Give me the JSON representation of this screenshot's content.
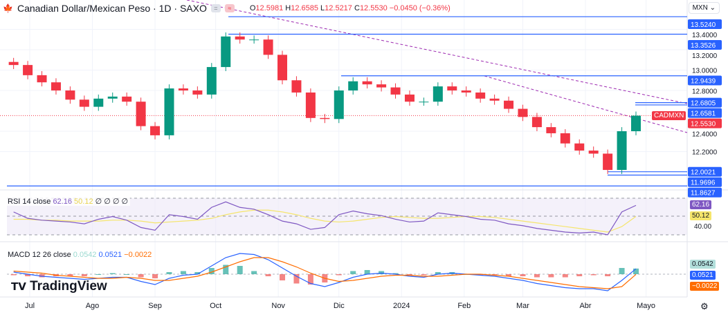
{
  "header": {
    "title": "Canadian Dollar/Mexican Peso · 1D · SAXO",
    "open": "12.5981",
    "high": "12.6585",
    "low": "12.5217",
    "close": "12.5530",
    "change": "−0.0450 (−0.36%)",
    "o": "O",
    "h": "H",
    "l": "L",
    "c": "C"
  },
  "currency": "MXN",
  "symbol_label": "CADMXN",
  "logo": "TradingView",
  "rsi": {
    "label": "RSI 14 close",
    "value": "62.16",
    "ma": "50.12",
    "na": "∅ ∅ ∅ ∅",
    "level40": "40.00"
  },
  "macd": {
    "label": "MACD 12 26 close",
    "hist": "0.0542",
    "macd": "0.0521",
    "signal": "−0.0022"
  },
  "colors": {
    "up": "#089981",
    "down": "#f23645",
    "lines": "#2962ff",
    "trend": "#9c27b0",
    "rsi": "#7e57c2",
    "rsi_ma": "#f5e56b",
    "macd": "#2962ff",
    "signal": "#ff6d00"
  },
  "chart_data": {
    "type": "candlestick",
    "price_ticks": [
      "13.4000",
      "13.2000",
      "13.0000",
      "12.8000",
      "12.4000",
      "12.2000"
    ],
    "x_ticks": [
      {
        "date": "2023-07-01",
        "label": "Jul"
      },
      {
        "date": "2023-08-01",
        "label": "Ago"
      },
      {
        "date": "2023-09-01",
        "label": "Sep"
      },
      {
        "date": "2023-10-01",
        "label": "Oct"
      },
      {
        "date": "2023-11-01",
        "label": "Nov"
      },
      {
        "date": "2023-12-01",
        "label": "Dic"
      },
      {
        "date": "2024-01-01",
        "label": "2024"
      },
      {
        "date": "2024-02-01",
        "label": "Feb"
      },
      {
        "date": "2024-03-01",
        "label": "Mar"
      },
      {
        "date": "2024-04-01",
        "label": "Abr"
      },
      {
        "date": "2024-05-01",
        "label": "Mayo"
      }
    ],
    "horizontal_levels": [
      {
        "value": 13.524,
        "label": "13.5240"
      },
      {
        "value": 13.3526,
        "label": "13.3526"
      },
      {
        "value": 12.9439,
        "label": "12.9439"
      },
      {
        "value": 12.6805,
        "label": "12.6805"
      },
      {
        "value": 12.6581,
        "label": "12.6581"
      },
      {
        "value": 12.0021,
        "label": "12.0021"
      },
      {
        "value": 11.9696,
        "label": "11.9696"
      },
      {
        "value": 11.8627,
        "label": "11.8627"
      }
    ],
    "last_price": {
      "value": 12.553,
      "label": "12.5530"
    },
    "dates": [
      "2023-06-23",
      "2023-06-30",
      "2023-07-07",
      "2023-07-14",
      "2023-07-21",
      "2023-07-28",
      "2023-08-04",
      "2023-08-11",
      "2023-08-18",
      "2023-08-25",
      "2023-09-01",
      "2023-09-08",
      "2023-09-15",
      "2023-09-22",
      "2023-09-29",
      "2023-10-06",
      "2023-10-13",
      "2023-10-20",
      "2023-10-27",
      "2023-11-03",
      "2023-11-10",
      "2023-11-17",
      "2023-11-24",
      "2023-12-01",
      "2023-12-08",
      "2023-12-15",
      "2023-12-22",
      "2023-12-29",
      "2024-01-05",
      "2024-01-12",
      "2024-01-19",
      "2024-01-26",
      "2024-02-02",
      "2024-02-09",
      "2024-02-16",
      "2024-02-23",
      "2024-03-01",
      "2024-03-08",
      "2024-03-15",
      "2024-03-22",
      "2024-03-29",
      "2024-04-05",
      "2024-04-12",
      "2024-04-19",
      "2024-04-26"
    ],
    "close": [
      13.05,
      12.95,
      12.88,
      12.8,
      12.71,
      12.64,
      12.72,
      12.74,
      12.69,
      12.45,
      12.36,
      12.82,
      12.8,
      12.76,
      13.03,
      13.33,
      13.3,
      13.3,
      13.15,
      12.9,
      12.78,
      12.53,
      12.52,
      12.8,
      12.89,
      12.86,
      12.83,
      12.76,
      12.69,
      12.69,
      12.84,
      12.8,
      12.78,
      12.72,
      12.7,
      12.62,
      12.54,
      12.44,
      12.38,
      12.28,
      12.21,
      12.18,
      12.02,
      12.4,
      12.553
    ],
    "rsi": [
      55,
      48,
      46,
      45,
      44,
      42,
      47,
      50,
      46,
      38,
      35,
      52,
      50,
      47,
      60,
      66,
      60,
      58,
      52,
      45,
      42,
      36,
      38,
      52,
      56,
      53,
      51,
      47,
      44,
      45,
      54,
      52,
      50,
      47,
      46,
      42,
      40,
      37,
      35,
      33,
      32,
      33,
      30,
      55,
      62.16
    ],
    "rsi_ma": [
      47,
      47,
      46,
      46,
      45,
      45,
      45,
      46,
      46,
      45,
      43,
      44,
      45,
      46,
      48,
      52,
      55,
      57,
      57,
      55,
      52,
      48,
      45,
      44,
      45,
      47,
      49,
      50,
      49,
      48,
      48,
      49,
      50,
      50,
      49,
      47,
      45,
      43,
      41,
      39,
      37,
      35,
      33,
      39,
      50.12
    ],
    "macd": [
      0.02,
      0.0,
      -0.02,
      -0.03,
      -0.04,
      -0.05,
      -0.04,
      -0.03,
      -0.03,
      -0.07,
      -0.1,
      -0.04,
      -0.01,
      0.0,
      0.08,
      0.16,
      0.2,
      0.19,
      0.14,
      0.06,
      -0.02,
      -0.09,
      -0.12,
      -0.08,
      -0.03,
      0.0,
      0.01,
      0.0,
      -0.02,
      -0.03,
      0.0,
      0.01,
      0.0,
      -0.01,
      -0.02,
      -0.04,
      -0.06,
      -0.09,
      -0.11,
      -0.13,
      -0.14,
      -0.14,
      -0.16,
      -0.06,
      0.0521
    ],
    "signal": [
      0.03,
      0.02,
      0.01,
      -0.01,
      -0.02,
      -0.03,
      -0.04,
      -0.04,
      -0.03,
      -0.04,
      -0.06,
      -0.06,
      -0.04,
      -0.02,
      0.02,
      0.07,
      0.12,
      0.16,
      0.16,
      0.12,
      0.07,
      0.01,
      -0.04,
      -0.07,
      -0.06,
      -0.04,
      -0.02,
      -0.01,
      -0.01,
      -0.02,
      -0.02,
      -0.01,
      0.0,
      0.0,
      -0.01,
      -0.02,
      -0.04,
      -0.06,
      -0.08,
      -0.1,
      -0.12,
      -0.13,
      -0.14,
      -0.12,
      -0.0022
    ]
  }
}
